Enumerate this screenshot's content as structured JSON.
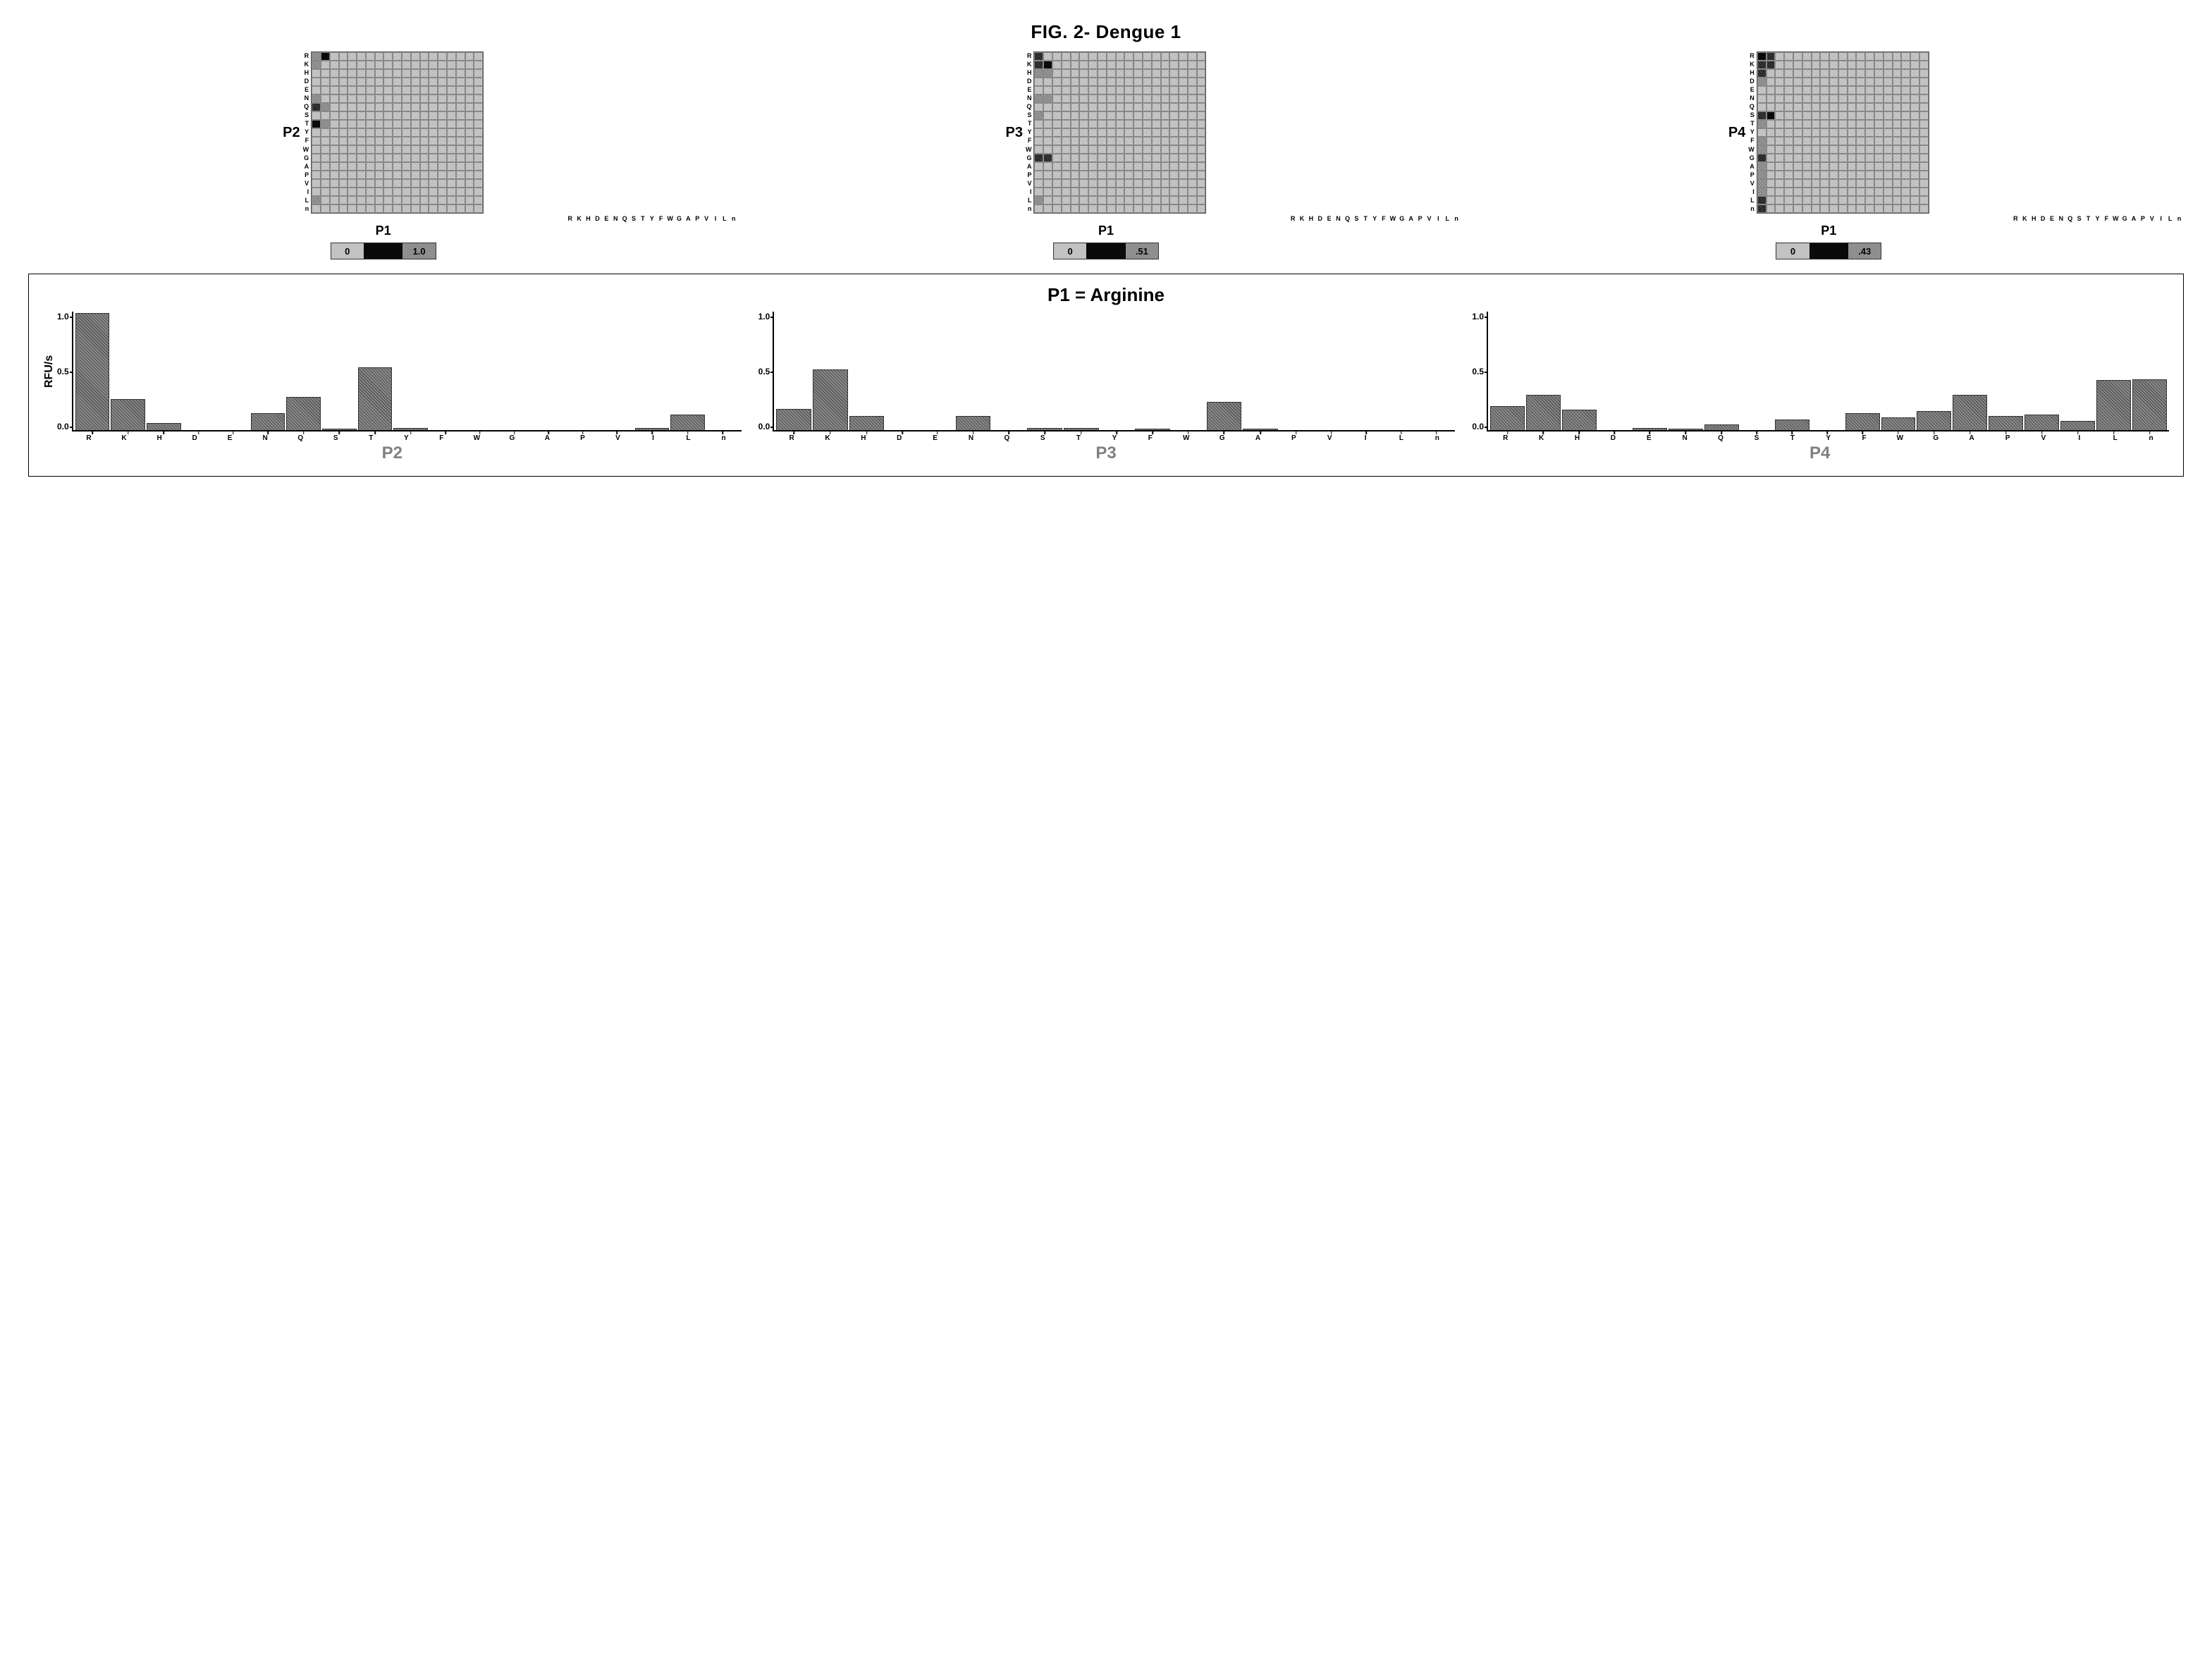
{
  "title": "FIG. 2- Dengue 1",
  "amino_acids": [
    "R",
    "K",
    "H",
    "D",
    "E",
    "N",
    "Q",
    "S",
    "T",
    "Y",
    "F",
    "W",
    "G",
    "A",
    "P",
    "V",
    "I",
    "L",
    "n"
  ],
  "xlabel": "P1",
  "heatmaps": [
    {
      "ylabel_major": "P2",
      "legend_min": "0",
      "legend_max": "1.0",
      "hot_cells": [
        {
          "row": 0,
          "col": 0,
          "level": 1
        },
        {
          "row": 0,
          "col": 1,
          "level": 3
        },
        {
          "row": 1,
          "col": 0,
          "level": 1
        },
        {
          "row": 5,
          "col": 0,
          "level": 1
        },
        {
          "row": 6,
          "col": 0,
          "level": 2
        },
        {
          "row": 6,
          "col": 1,
          "level": 1
        },
        {
          "row": 8,
          "col": 0,
          "level": 3
        },
        {
          "row": 8,
          "col": 1,
          "level": 1
        },
        {
          "row": 17,
          "col": 0,
          "level": 1
        }
      ]
    },
    {
      "ylabel_major": "P3",
      "legend_min": "0",
      "legend_max": ".51",
      "hot_cells": [
        {
          "row": 0,
          "col": 0,
          "level": 2
        },
        {
          "row": 1,
          "col": 0,
          "level": 2
        },
        {
          "row": 1,
          "col": 1,
          "level": 3
        },
        {
          "row": 2,
          "col": 0,
          "level": 1
        },
        {
          "row": 2,
          "col": 1,
          "level": 1
        },
        {
          "row": 5,
          "col": 0,
          "level": 1
        },
        {
          "row": 5,
          "col": 1,
          "level": 1
        },
        {
          "row": 7,
          "col": 0,
          "level": 1
        },
        {
          "row": 12,
          "col": 0,
          "level": 2
        },
        {
          "row": 12,
          "col": 1,
          "level": 2
        },
        {
          "row": 17,
          "col": 0,
          "level": 1
        }
      ]
    },
    {
      "ylabel_major": "P4",
      "legend_min": "0",
      "legend_max": ".43",
      "hot_cells": [
        {
          "row": 0,
          "col": 0,
          "level": 3
        },
        {
          "row": 0,
          "col": 1,
          "level": 2
        },
        {
          "row": 1,
          "col": 0,
          "level": 2
        },
        {
          "row": 1,
          "col": 1,
          "level": 2
        },
        {
          "row": 2,
          "col": 0,
          "level": 2
        },
        {
          "row": 3,
          "col": 0,
          "level": 1
        },
        {
          "row": 7,
          "col": 0,
          "level": 2
        },
        {
          "row": 7,
          "col": 1,
          "level": 3
        },
        {
          "row": 8,
          "col": 0,
          "level": 1
        },
        {
          "row": 10,
          "col": 0,
          "level": 1
        },
        {
          "row": 11,
          "col": 0,
          "level": 1
        },
        {
          "row": 12,
          "col": 0,
          "level": 2
        },
        {
          "row": 13,
          "col": 0,
          "level": 1
        },
        {
          "row": 14,
          "col": 0,
          "level": 1
        },
        {
          "row": 15,
          "col": 0,
          "level": 1
        },
        {
          "row": 16,
          "col": 0,
          "level": 1
        },
        {
          "row": 17,
          "col": 0,
          "level": 2
        },
        {
          "row": 18,
          "col": 0,
          "level": 2
        }
      ]
    }
  ],
  "bottom_title": "P1 = Arginine",
  "y_axis_label": "RFU/s",
  "y_max": 1.0,
  "y_ticks": [
    "1.0",
    "0.5",
    "0.0"
  ],
  "bar_charts": [
    {
      "sublabel": "P2",
      "values": [
        0.99,
        0.26,
        0.06,
        0.0,
        0.0,
        0.14,
        0.28,
        0.01,
        0.53,
        0.02,
        0.0,
        0.0,
        0.0,
        0.0,
        0.0,
        0.0,
        0.02,
        0.13,
        0.0
      ]
    },
    {
      "sublabel": "P3",
      "values": [
        0.18,
        0.51,
        0.12,
        0.0,
        0.0,
        0.12,
        0.0,
        0.02,
        0.02,
        0.0,
        0.01,
        0.0,
        0.24,
        0.01,
        0.0,
        0.0,
        0.0,
        0.0,
        0.0
      ]
    },
    {
      "sublabel": "P4",
      "values": [
        0.2,
        0.3,
        0.17,
        0.0,
        0.02,
        0.01,
        0.05,
        0.0,
        0.09,
        0.0,
        0.14,
        0.11,
        0.16,
        0.3,
        0.12,
        0.13,
        0.08,
        0.42,
        0.43
      ]
    }
  ],
  "colors": {
    "bg": "#ffffff",
    "text": "#000000",
    "grid_border": "#888888",
    "bar_fill": "#7c7c7c",
    "sublabel": "#808080"
  }
}
